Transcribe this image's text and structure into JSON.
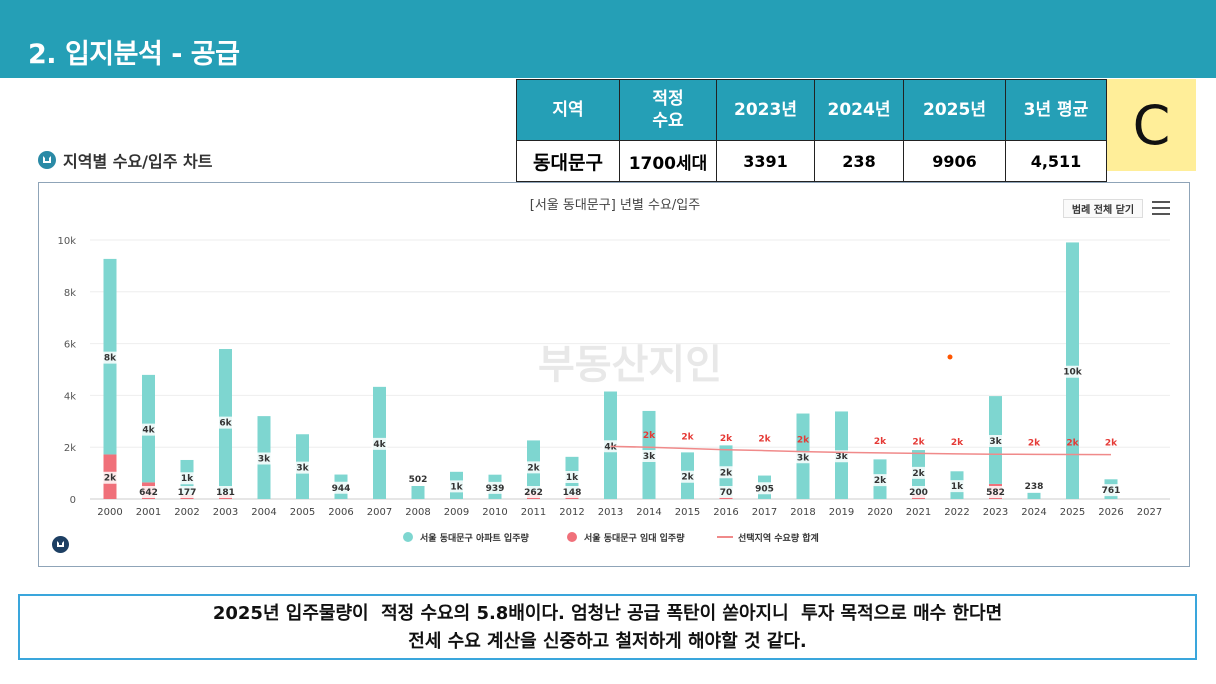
{
  "header": {
    "title": "2. 입지분석 - 공급"
  },
  "summary_table": {
    "headers": [
      "지역",
      "적정\n수요",
      "2023년",
      "2024년",
      "2025년",
      "3년 평균"
    ],
    "row": [
      "동대문구",
      "1700세대",
      "3391",
      "238",
      "9906",
      "4,511"
    ]
  },
  "grade": "C",
  "section": {
    "title": "지역별 수요/입주 차트"
  },
  "toolbar": {
    "legend_close": "범례 전체 닫기"
  },
  "colors": {
    "apt": "#7ed6d0",
    "rental": "#f0707a",
    "demand": "#f08a8a",
    "header": "#259fb6"
  },
  "chart_data": {
    "type": "bar",
    "title": "[서울 동대문구] 년별 수요/입주",
    "categories": [
      "2000",
      "2001",
      "2002",
      "2003",
      "2004",
      "2005",
      "2006",
      "2007",
      "2008",
      "2009",
      "2010",
      "2011",
      "2012",
      "2013",
      "2014",
      "2015",
      "2016",
      "2017",
      "2018",
      "2019",
      "2020",
      "2021",
      "2022",
      "2023",
      "2024",
      "2025",
      "2026",
      "2027"
    ],
    "y_ticks": [
      "0",
      "2k",
      "4k",
      "6k",
      "8k",
      "10k"
    ],
    "ylim": [
      0,
      10000
    ],
    "series": [
      {
        "name": "서울 동대문구 아파트 입주량",
        "type": "bar",
        "stack": true,
        "values": [
          7550,
          4150,
          1330,
          5610,
          3200,
          2500,
          944,
          4330,
          502,
          1050,
          939,
          2000,
          1480,
          4150,
          3400,
          1800,
          2000,
          905,
          3300,
          3380,
          1530,
          1690,
          1070,
          3391,
          238,
          9906,
          761,
          0
        ],
        "labels": [
          "8k",
          "4k",
          "1k",
          "6k",
          "3k",
          "3k",
          "944",
          "4k",
          "502",
          "1k",
          "939",
          "2k",
          "1k",
          "4k",
          "3k",
          "2k",
          "2k",
          "905",
          "3k",
          "3k",
          "2k",
          "2k",
          "1k",
          "3k",
          "238",
          "10k",
          "761",
          ""
        ]
      },
      {
        "name": "서울 동대문구 임대 입주량",
        "type": "bar",
        "stack": true,
        "values": [
          1720,
          642,
          177,
          181,
          0,
          0,
          0,
          0,
          0,
          0,
          0,
          262,
          148,
          0,
          0,
          0,
          70,
          0,
          0,
          0,
          0,
          200,
          0,
          582,
          0,
          0,
          0,
          0
        ],
        "labels": [
          "2k",
          "642",
          "177",
          "181",
          "",
          "",
          "",
          "",
          "",
          "",
          "",
          "262",
          "148",
          "",
          "",
          "",
          "70",
          "",
          "",
          "",
          "",
          "200",
          "",
          "582",
          "",
          "",
          "",
          ""
        ]
      },
      {
        "name": "선택지역 수요량 합계",
        "type": "line",
        "values": [
          null,
          null,
          null,
          null,
          null,
          null,
          null,
          null,
          null,
          null,
          null,
          null,
          null,
          2030,
          2000,
          1950,
          1900,
          1870,
          1830,
          1800,
          1780,
          1760,
          1740,
          1730,
          1725,
          1720,
          1715,
          null
        ],
        "labels": [
          "",
          "",
          "",
          "",
          "",
          "",
          "",
          "",
          "",
          "",
          "",
          "",
          "",
          "",
          "2k",
          "2k",
          "2k",
          "2k",
          "2k",
          "",
          "2k",
          "2k",
          "2k",
          "",
          "2k",
          "2k",
          "2k",
          ""
        ]
      }
    ]
  },
  "conclusion": {
    "line1": "2025년 입주물량이  적정 수요의 5.8배이다. 엄청난 공급 폭탄이 쏟아지니  투자 목적으로 매수 한다면",
    "line2": "전세 수요 계산을 신중하고 철저하게 해야할 것 같다."
  }
}
